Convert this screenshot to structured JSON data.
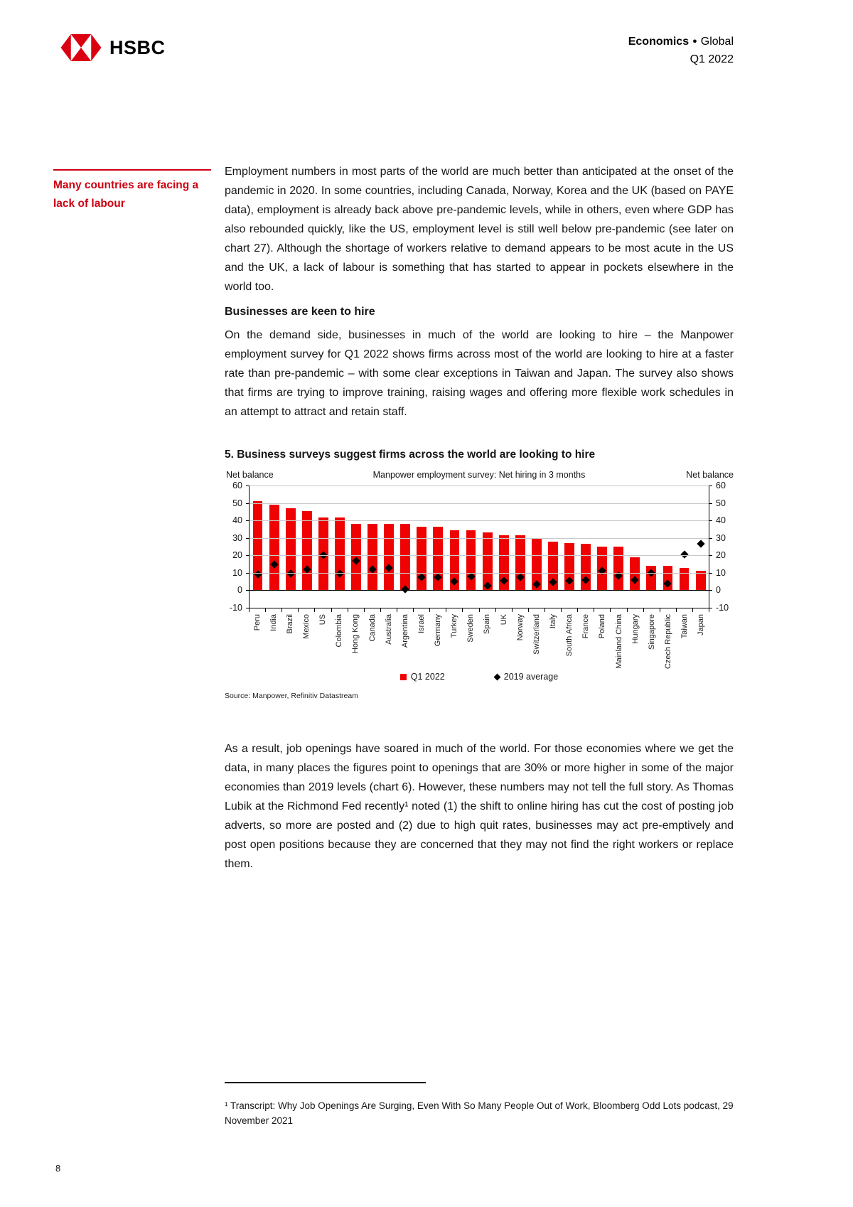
{
  "page": {
    "number": "8"
  },
  "header": {
    "brand": "HSBC",
    "section": "Economics",
    "separator": "●",
    "region": "Global",
    "edition": "Q1 2022"
  },
  "sidebar": {
    "callout": "Many countries are facing a lack of labour"
  },
  "body": {
    "paragraph1": "Employment numbers in most parts of the world are much better than anticipated at the onset of the pandemic in 2020. In some countries, including Canada, Norway, Korea and the UK (based on PAYE data), employment is already back above pre-pandemic levels, while in others, even where GDP has also rebounded quickly, like the US, employment level is still well below pre-pandemic (see later on chart 27). Although the shortage of workers relative to demand appears to be most acute in the US and the UK, a lack of labour is something that has started to appear in pockets elsewhere in the world too.",
    "heading2": "Businesses are keen to hire",
    "paragraph2": "On the demand side, businesses in much of the world are looking to hire – the Manpower employment survey for Q1 2022 shows firms across most of the world are looking to hire at a faster rate than pre-pandemic – with some clear exceptions in Taiwan and Japan. The survey also shows that firms are trying to improve training, raising wages and offering more flexible work schedules in an attempt to attract and retain staff.",
    "paragraph3": "As a result, job openings have soared in much of the world. For those economies where we get the data, in many places the figures point to openings that are 30% or more higher in some of the major economies than 2019 levels (chart 6). However, these numbers may not tell the full story. As Thomas Lubik at the Richmond Fed recently¹ noted (1) the shift to online hiring has cut the cost of posting job adverts, so more are posted and (2) due to high quit rates, businesses may act pre-emptively and post open positions because they are concerned that they may not find the right workers or replace them."
  },
  "chart_data": {
    "type": "bar",
    "title": "5. Business surveys suggest firms across the world are looking to hire",
    "subtitle": "Manpower employment survey: Net hiring in 3 months",
    "ylabel_left": "Net balance",
    "ylabel_right": "Net balance",
    "ylim": [
      -10,
      60
    ],
    "yticks": [
      60,
      50,
      40,
      30,
      20,
      10,
      0,
      -10
    ],
    "grid": true,
    "legend_position": "bottom",
    "categories": [
      "Peru",
      "India",
      "Brazil",
      "Mexico",
      "US",
      "Colombia",
      "Hong Kong",
      "Canada",
      "Australia",
      "Argentina",
      "Israel",
      "Germany",
      "Turkey",
      "Sweden",
      "Spain",
      "UK",
      "Norway",
      "Switzerland",
      "Italy",
      "South Africa",
      "France",
      "Poland",
      "Mainland China",
      "Hungary",
      "Singapore",
      "Czech Republic",
      "Taiwan",
      "Japan"
    ],
    "series": [
      {
        "name": "Q1 2022",
        "type": "bar",
        "color": "#ee0202",
        "values": [
          51,
          49,
          47,
          45.5,
          41.5,
          41.5,
          38,
          38,
          38,
          38,
          36.5,
          36.5,
          34.5,
          34.5,
          33,
          31.5,
          31.5,
          29.5,
          28,
          27,
          26.5,
          25,
          25,
          19,
          14,
          14,
          13,
          11
        ]
      },
      {
        "name": "2019 average",
        "type": "scatter-diamond",
        "color": "#000000",
        "values": [
          9,
          15,
          9.5,
          12,
          20,
          9.5,
          17,
          12,
          13,
          0.5,
          7.5,
          7.5,
          5,
          8,
          2.5,
          5.5,
          7.5,
          3.5,
          4.5,
          5.5,
          6,
          11,
          8.5,
          6,
          10,
          4,
          20.5,
          26.5
        ]
      }
    ],
    "source": "Source: Manpower, Refinitiv Datastream"
  },
  "footnote": {
    "text": "¹ Transcript: Why Job Openings Are Surging, Even With So Many People Out of Work, Bloomberg Odd Lots podcast, 29 November 2021"
  },
  "colors": {
    "brand_red": "#db0011",
    "callout_red": "#cc0011",
    "bar_red": "#ee0202"
  }
}
